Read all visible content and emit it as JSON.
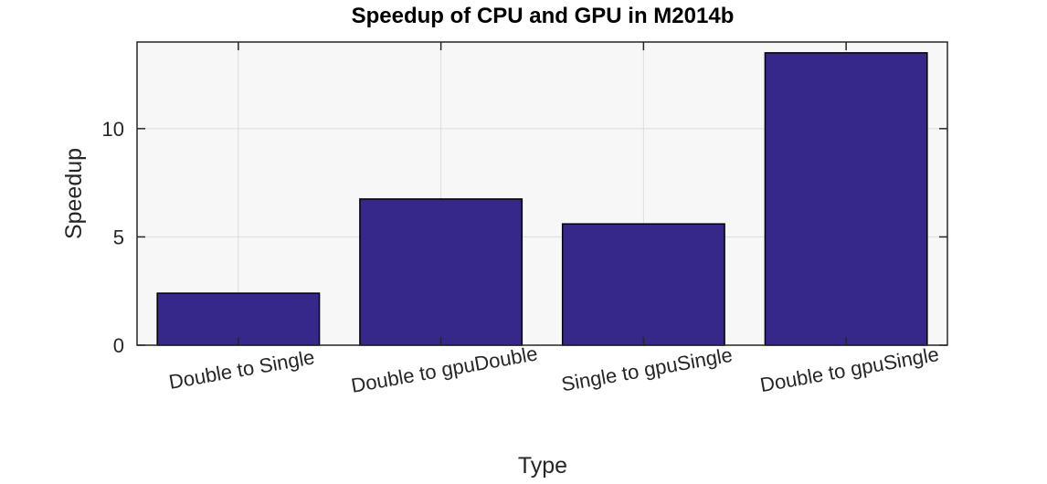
{
  "chart_data": {
    "type": "bar",
    "title": "Speedup of CPU and GPU in M2014b",
    "xlabel": "Type",
    "ylabel": "Speedup",
    "categories": [
      "Double to Single",
      "Double to gpuDouble",
      "Single to gpuSingle",
      "Double to gpuSingle"
    ],
    "values": [
      2.4,
      6.75,
      5.6,
      13.5
    ],
    "ylim": [
      0,
      14
    ],
    "yticks": [
      0,
      5,
      10
    ],
    "grid": true,
    "bar_color": "#35288a",
    "axes_background": "#f7f7f7"
  }
}
